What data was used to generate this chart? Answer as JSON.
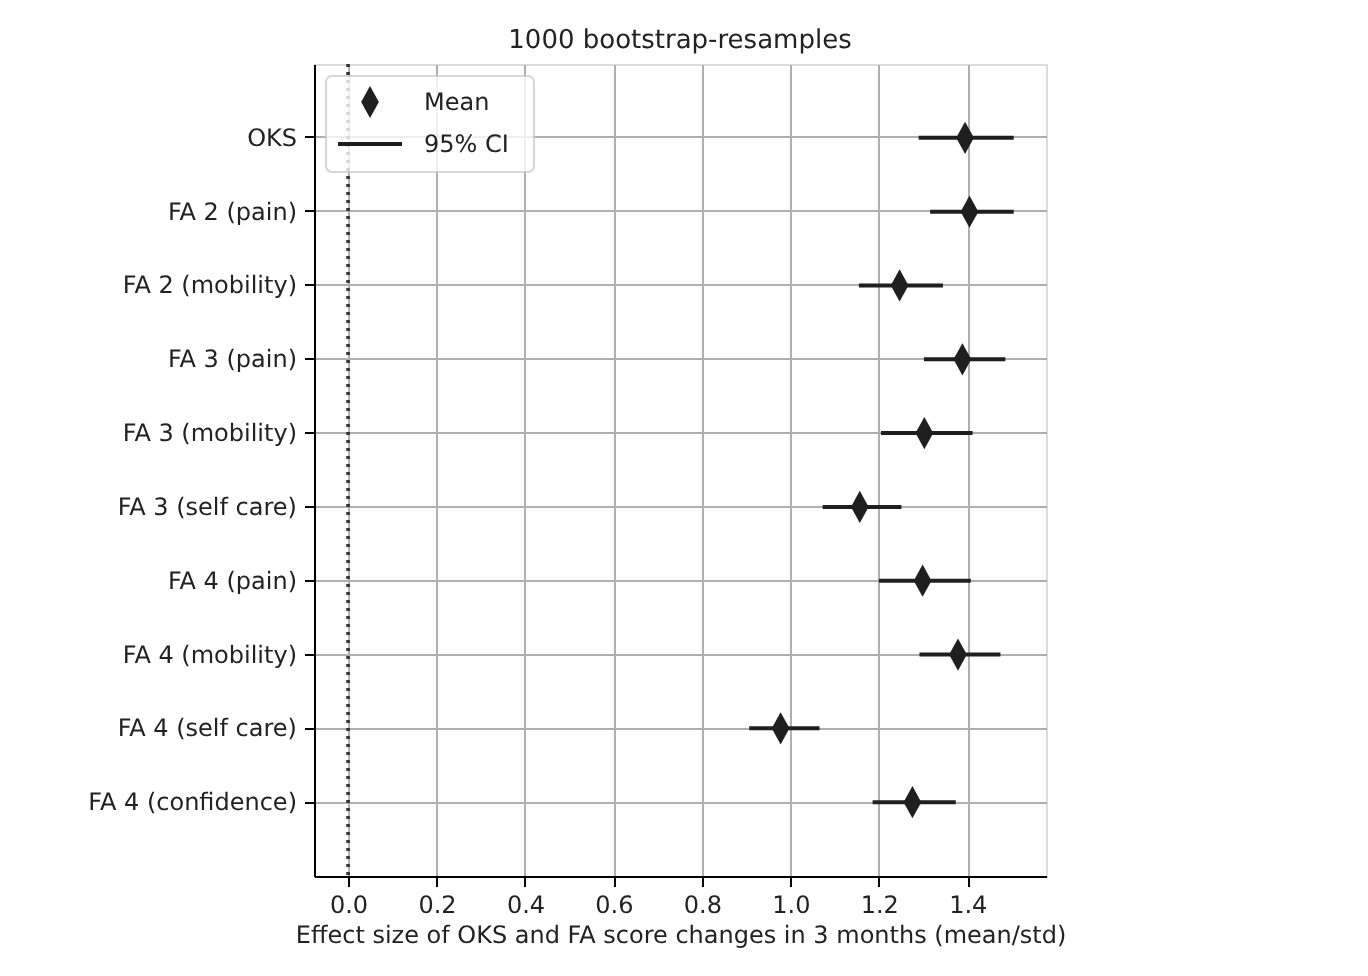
{
  "chart_data": {
    "type": "scatter",
    "title": "1000 bootstrap-resamples",
    "xlabel": "Effect size of OKS and FA score changes in 3 months (mean/std)",
    "orientation": "horizontal",
    "categories": [
      "OKS",
      "FA 2 (pain)",
      "FA 2 (mobility)",
      "FA 3 (pain)",
      "FA 3 (mobility)",
      "FA 3 (self care)",
      "FA 4 (pain)",
      "FA 4 (mobility)",
      "FA 4 (self care)",
      "FA 4 (confidence)"
    ],
    "series": [
      {
        "name": "Mean",
        "color": "#1f1f1f",
        "values": [
          1.395,
          1.405,
          1.247,
          1.389,
          1.303,
          1.157,
          1.299,
          1.379,
          0.978,
          1.276
        ],
        "errors": [
          [
            1.29,
            1.505
          ],
          [
            1.316,
            1.505
          ],
          [
            1.155,
            1.345
          ],
          [
            1.302,
            1.486
          ],
          [
            1.205,
            1.412
          ],
          [
            1.073,
            1.251
          ],
          [
            1.2,
            1.408
          ],
          [
            1.292,
            1.475
          ],
          [
            0.907,
            1.066
          ],
          [
            1.186,
            1.374
          ]
        ]
      }
    ],
    "annotations": [
      "95% CI"
    ],
    "xlim": [
      -0.077,
      1.578
    ],
    "xticks": [
      {
        "value": 0,
        "label": "0.0"
      },
      0.2,
      0.4,
      0.6,
      0.8,
      {
        "value": 1,
        "label": "1.0"
      },
      1.2,
      1.4
    ],
    "ref_lines": [
      {
        "axis": "x",
        "value": 0,
        "color": "#333333",
        "line_style": "dotted"
      }
    ],
    "grid": true,
    "legend": "top left",
    "marker": "diamond"
  }
}
